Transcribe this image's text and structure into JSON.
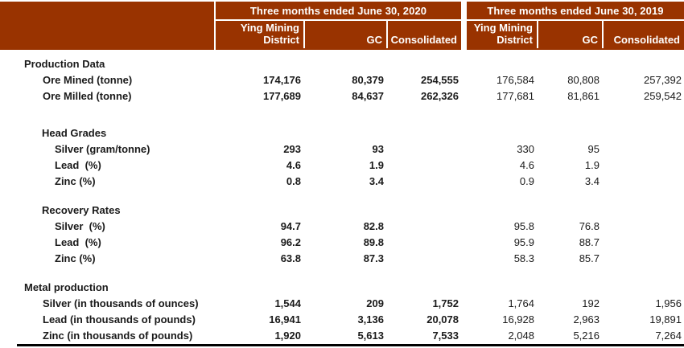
{
  "colors": {
    "header_bg": "#993300",
    "header_text": "#ffffff",
    "body_text": "#1a1a1a",
    "separator": "#ffffff",
    "bottom_rule": "#000000"
  },
  "header": {
    "periods": [
      {
        "title": "Three months ended June 30, 2020",
        "subcolumns": [
          "Ying Mining District",
          "GC",
          "Consolidated"
        ]
      },
      {
        "title": "Three months ended June 30, 2019",
        "subcolumns": [
          "Ying Mining District",
          "GC",
          "Consolidated"
        ]
      }
    ]
  },
  "sections": [
    {
      "title": "Production Data",
      "level": 1,
      "rows": [
        {
          "label": "Ore Mined (tonne)",
          "values_2020": [
            "174,176",
            "80,379",
            "254,555"
          ],
          "values_2019": [
            "176,584",
            "80,808",
            "257,392"
          ]
        },
        {
          "label": "Ore Milled (tonne)",
          "values_2020": [
            "177,689",
            "84,637",
            "262,326"
          ],
          "values_2019": [
            "177,681",
            "81,861",
            "259,542"
          ]
        }
      ]
    },
    {
      "title": "Head Grades",
      "level": 2,
      "rows": [
        {
          "label": "Silver (gram/tonne)",
          "values_2020": [
            "293",
            "93",
            ""
          ],
          "values_2019": [
            "330",
            "95",
            ""
          ]
        },
        {
          "label": "Lead  (%)",
          "values_2020": [
            "4.6",
            "1.9",
            ""
          ],
          "values_2019": [
            "4.6",
            "1.9",
            ""
          ]
        },
        {
          "label": "Zinc (%)",
          "values_2020": [
            "0.8",
            "3.4",
            ""
          ],
          "values_2019": [
            "0.9",
            "3.4",
            ""
          ]
        }
      ]
    },
    {
      "title": "Recovery Rates",
      "level": 2,
      "rows": [
        {
          "label": "Silver  (%)",
          "values_2020": [
            "94.7",
            "82.8",
            ""
          ],
          "values_2019": [
            "95.8",
            "76.8",
            ""
          ]
        },
        {
          "label": "Lead  (%)",
          "values_2020": [
            "96.2",
            "89.8",
            ""
          ],
          "values_2019": [
            "95.9",
            "88.7",
            ""
          ]
        },
        {
          "label": "Zinc (%)",
          "values_2020": [
            "63.8",
            "87.3",
            ""
          ],
          "values_2019": [
            "58.3",
            "85.7",
            ""
          ]
        }
      ]
    },
    {
      "title": "Metal production",
      "level": 1,
      "rows": [
        {
          "label": "Silver (in thousands of ounces)",
          "values_2020": [
            "1,544",
            "209",
            "1,752"
          ],
          "values_2019": [
            "1,764",
            "192",
            "1,956"
          ]
        },
        {
          "label": "Lead (in thousands of pounds)",
          "values_2020": [
            "16,941",
            "3,136",
            "20,078"
          ],
          "values_2019": [
            "16,928",
            "2,963",
            "19,891"
          ]
        },
        {
          "label": "Zinc (in thousands of pounds)",
          "values_2020": [
            "1,920",
            "5,613",
            "7,533"
          ],
          "values_2019": [
            "2,048",
            "5,216",
            "7,264"
          ]
        }
      ]
    }
  ]
}
